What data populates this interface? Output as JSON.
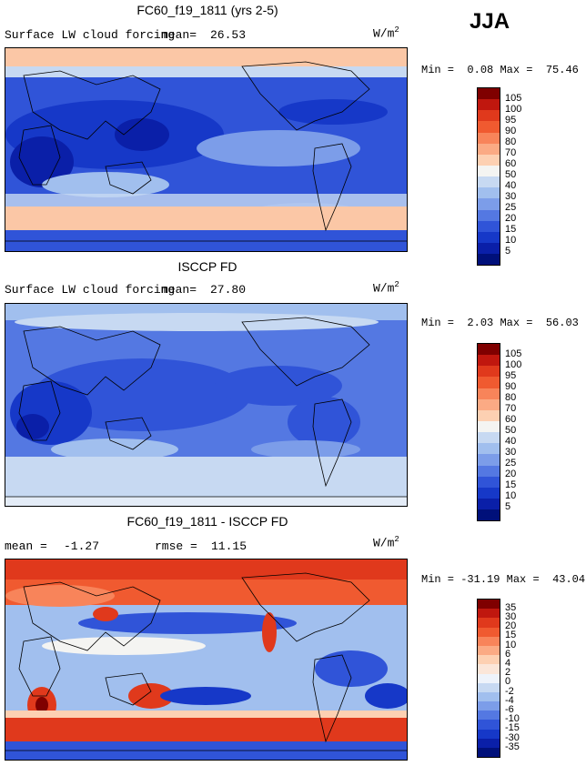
{
  "season": "JJA",
  "panels": [
    {
      "id": "model",
      "title": "FC60_f19_1811 (yrs 2-5)",
      "variable": "Surface LW cloud forcing",
      "mean_label": "mean=",
      "mean_value": "26.53",
      "units": "W/m",
      "units_sup": "2",
      "min_label": "Min =",
      "min_value": "0.08",
      "max_label": "Max =",
      "max_value": "75.46",
      "colorbar_labels": [
        "105",
        "100",
        "95",
        "90",
        "80",
        "70",
        "60",
        "50",
        "40",
        "30",
        "25",
        "20",
        "15",
        "10",
        "5"
      ]
    },
    {
      "id": "obs",
      "title": "ISCCP FD",
      "variable": "Surface LW cloud forcing",
      "mean_label": "mean=",
      "mean_value": "27.80",
      "units": "W/m",
      "units_sup": "2",
      "min_label": "Min =",
      "min_value": "2.03",
      "max_label": "Max =",
      "max_value": "56.03",
      "colorbar_labels": [
        "105",
        "100",
        "95",
        "90",
        "80",
        "70",
        "60",
        "50",
        "40",
        "30",
        "25",
        "20",
        "15",
        "10",
        "5"
      ]
    },
    {
      "id": "diff",
      "title": "FC60_f19_1811 - ISCCP FD",
      "mean_label": "mean =",
      "mean_value": "-1.27",
      "rmse_label": "rmse =",
      "rmse_value": "11.15",
      "units": "W/m",
      "units_sup": "2",
      "min_label": "Min =",
      "min_value": "-31.19",
      "max_label": "Max =",
      "max_value": "43.04",
      "colorbar_labels": [
        "35",
        "30",
        "20",
        "15",
        "10",
        "6",
        "4",
        "2",
        "0",
        "-2",
        "-4",
        "-6",
        "-10",
        "-15",
        "-30",
        "-35"
      ]
    }
  ],
  "colors": {
    "abs_scale": [
      "#7f0000",
      "#c0170e",
      "#e0391c",
      "#f05a30",
      "#f8845a",
      "#fbaa84",
      "#fdd0b2",
      "#f4f4f2",
      "#c7d9f2",
      "#a1bfee",
      "#7c9de9",
      "#5478e2",
      "#3054d8",
      "#1638c8",
      "#0a1fa8",
      "#00107a"
    ],
    "diff_scale": [
      "#7f0000",
      "#c0170e",
      "#e0391c",
      "#f05a30",
      "#f8845a",
      "#fbaa84",
      "#fdd0b2",
      "#fbe6d9",
      "#eef3fb",
      "#c7d9f2",
      "#a1bfee",
      "#7c9de9",
      "#5478e2",
      "#3054d8",
      "#1638c8",
      "#0a1fa8",
      "#00107a"
    ]
  }
}
